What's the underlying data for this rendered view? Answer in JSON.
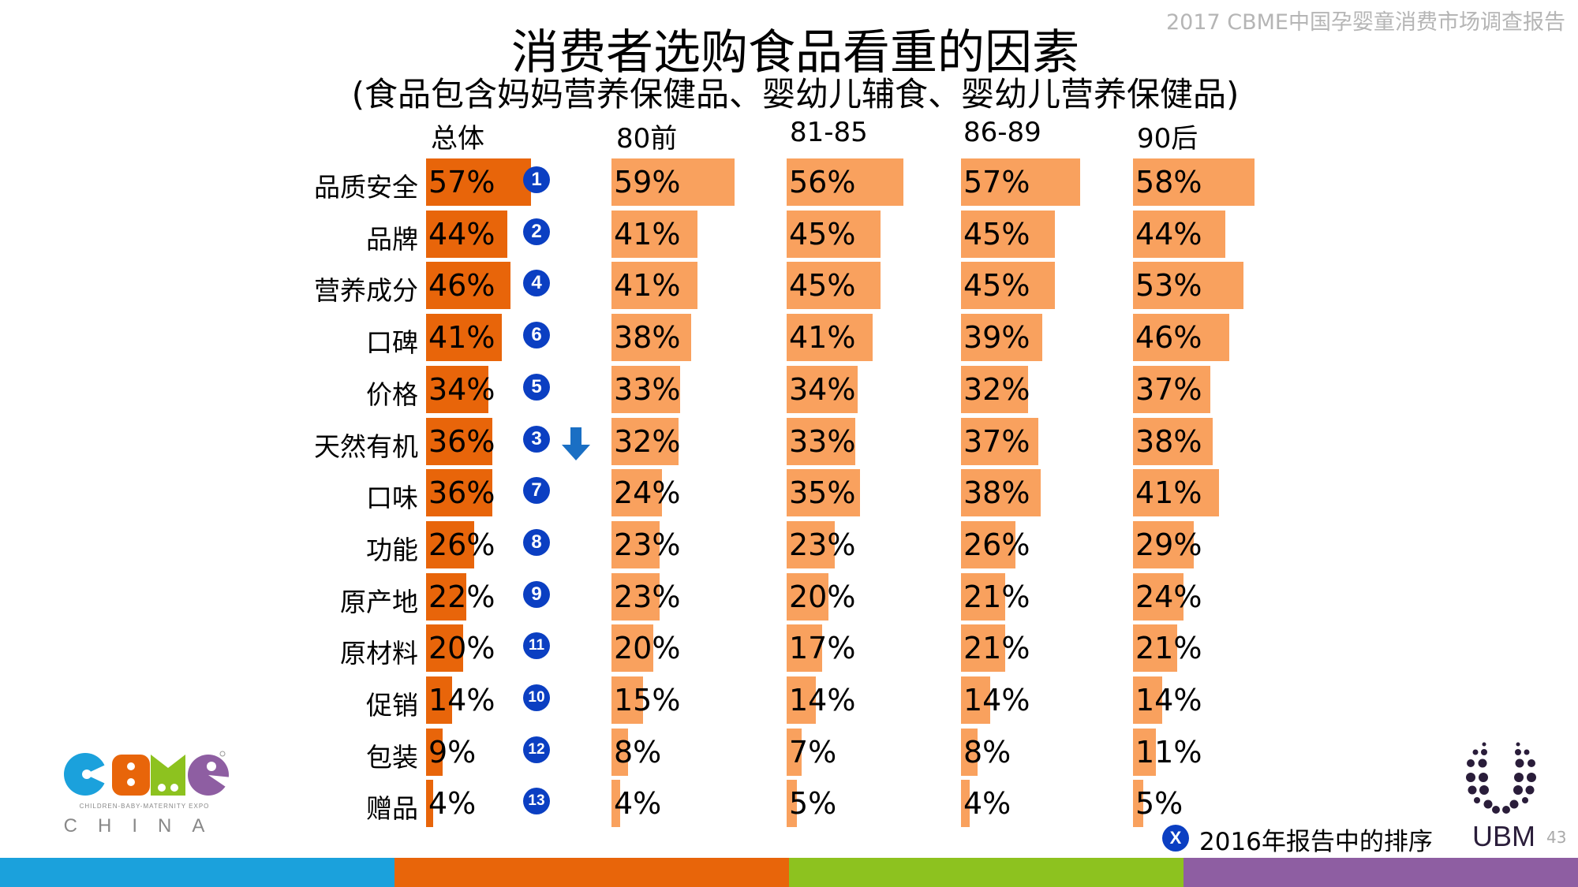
{
  "header": {
    "report_title": "2017 CBME中国孕婴童消费市场调查报告",
    "title": "消费者选购食品看重的因素",
    "subtitle": "(食品包含妈妈营养保健品、婴幼儿辅食、婴幼儿营养保健品)"
  },
  "chart_data": {
    "type": "bar",
    "orientation": "horizontal",
    "title": "消费者选购食品看重的因素",
    "subtitle": "(食品包含妈妈营养保健品、婴幼儿辅食、婴幼儿营养保健品)",
    "categories": [
      "品质安全",
      "品牌",
      "营养成分",
      "口碑",
      "价格",
      "天然有机",
      "口味",
      "功能",
      "原产地",
      "原材料",
      "促销",
      "包装",
      "赠品"
    ],
    "series": [
      {
        "name": "总体",
        "values": [
          57,
          44,
          46,
          41,
          34,
          36,
          36,
          26,
          22,
          20,
          14,
          9,
          4
        ],
        "color": "#e8650a"
      },
      {
        "name": "80前",
        "values": [
          59,
          41,
          41,
          38,
          33,
          32,
          24,
          23,
          23,
          20,
          15,
          8,
          4
        ],
        "color": "#f9a15e"
      },
      {
        "name": "81-85",
        "values": [
          56,
          45,
          45,
          41,
          34,
          33,
          35,
          23,
          20,
          17,
          14,
          7,
          5
        ],
        "color": "#f9a15e"
      },
      {
        "name": "86-89",
        "values": [
          57,
          45,
          45,
          39,
          32,
          37,
          38,
          26,
          21,
          21,
          14,
          8,
          4
        ],
        "color": "#f9a15e"
      },
      {
        "name": "90后",
        "values": [
          58,
          44,
          53,
          46,
          37,
          38,
          41,
          29,
          24,
          21,
          14,
          11,
          5
        ],
        "color": "#f9a15e"
      }
    ],
    "unit": "%",
    "rank_2016": [
      "1",
      "2",
      "4",
      "6",
      "5",
      "3",
      "7",
      "8",
      "9",
      "11",
      "10",
      "12",
      "13"
    ],
    "rank_change_markers": [
      {
        "category": "天然有机",
        "icon": "arrow-down-icon",
        "color": "#1a6fc4"
      }
    ],
    "badge_color": "#0b3fc2",
    "legend": {
      "badge": "X",
      "text": "2016年报告中的排序"
    }
  },
  "footer": {
    "ubm_label": "UBM",
    "page_number": "43",
    "cbme_logo": "CBME CHILDREN-BABY-MATERNITY EXPO CHINA",
    "stripe_colors": [
      "#1ba1dc",
      "#e8650a",
      "#8dc21f",
      "#8e5ea2"
    ]
  }
}
